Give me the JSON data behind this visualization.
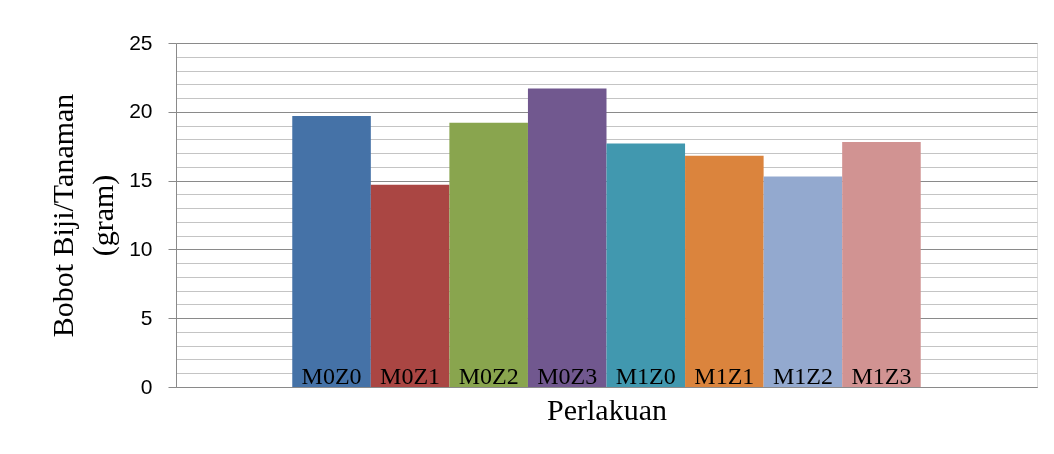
{
  "chart_data": {
    "type": "bar",
    "xlabel": "Perlakuan",
    "ylabel": "Bobot Biji/Tanaman (gram)",
    "categories": [
      null
    ],
    "series": [
      {
        "name": "M0Z0",
        "color": "#4572a7",
        "values": [
          19.7
        ]
      },
      {
        "name": "M0Z1",
        "color": "#aa4643",
        "values": [
          14.7
        ]
      },
      {
        "name": "M0Z2",
        "color": "#89a54e",
        "values": [
          19.2
        ]
      },
      {
        "name": "M0Z3",
        "color": "#71588f",
        "values": [
          21.7
        ]
      },
      {
        "name": "M1Z0",
        "color": "#4198af",
        "values": [
          17.7
        ]
      },
      {
        "name": "M1Z1",
        "color": "#db843d",
        "values": [
          16.8
        ]
      },
      {
        "name": "M1Z2",
        "color": "#93a9cf",
        "values": [
          15.3
        ]
      },
      {
        "name": "M1Z3",
        "color": "#d19392",
        "values": [
          17.8
        ]
      }
    ],
    "ylim": [
      0,
      25
    ],
    "yticks": [
      0,
      {
        "value": 1,
        "label": null
      },
      {
        "value": 2,
        "label": null
      },
      {
        "value": 3,
        "label": null
      },
      {
        "value": 4,
        "label": null
      },
      5,
      {
        "value": 6,
        "label": null
      },
      {
        "value": 7,
        "label": null
      },
      {
        "value": 8,
        "label": null
      },
      {
        "value": 9,
        "label": null
      },
      10,
      {
        "value": 11,
        "label": null
      },
      {
        "value": 12,
        "label": null
      },
      {
        "value": 13,
        "label": null
      },
      {
        "value": 14,
        "label": null
      },
      15,
      {
        "value": 16,
        "label": null
      },
      {
        "value": 17,
        "label": null
      },
      {
        "value": 18,
        "label": null
      },
      {
        "value": 19,
        "label": null
      },
      20,
      {
        "value": 21,
        "label": null
      },
      {
        "value": 22,
        "label": null
      },
      {
        "value": 23,
        "label": null
      },
      {
        "value": 24,
        "label": null
      },
      25
    ],
    "grid": "y"
  }
}
